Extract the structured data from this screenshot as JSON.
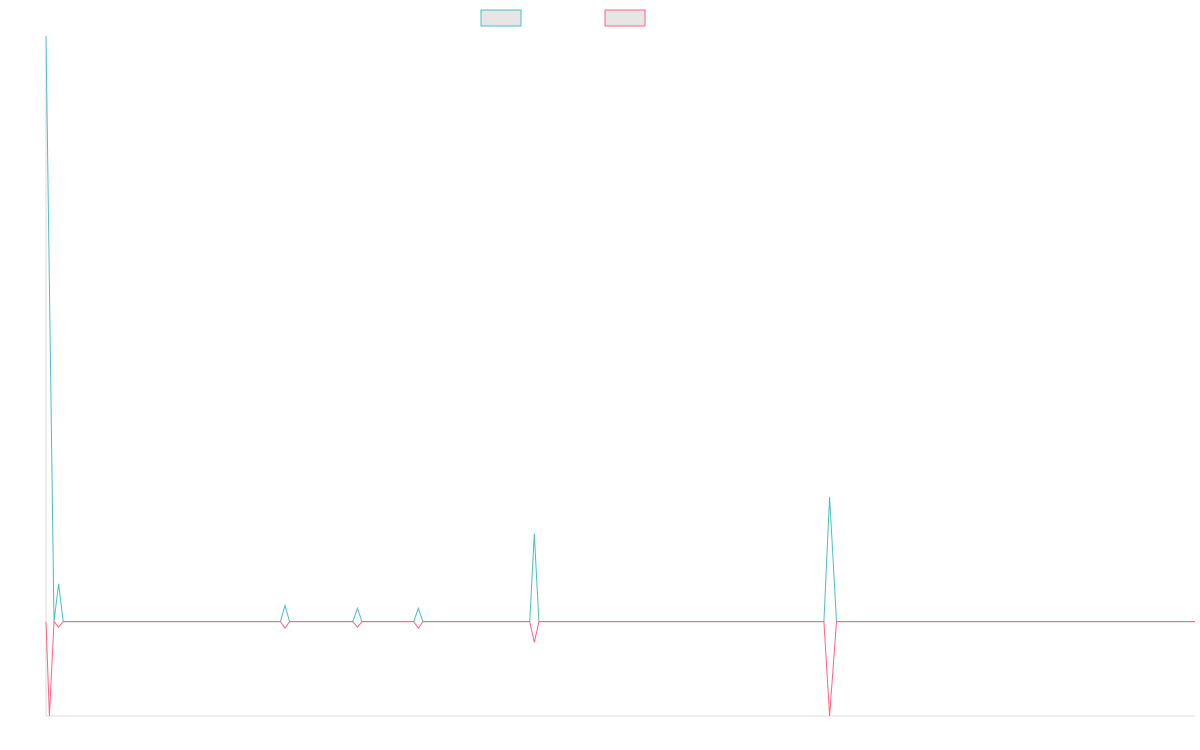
{
  "chart_data": {
    "type": "line",
    "title": "",
    "xlabel": "",
    "ylabel": "",
    "legend": {
      "position": "top-center",
      "entries": [
        {
          "color": "#4bc0c0",
          "fill": "#e6e6e6"
        },
        {
          "color": "#ff6384",
          "fill": "#e6e6e6"
        }
      ]
    },
    "grid": false,
    "xlim": [
      0,
      1000
    ],
    "ylim": [
      -100,
      620
    ],
    "series": [
      {
        "color": "#4bc0c0",
        "points": [
          [
            0,
            620
          ],
          [
            7,
            0
          ],
          [
            11,
            40
          ],
          [
            15,
            0
          ],
          [
            170,
            0
          ],
          [
            174,
            0
          ],
          [
            178,
            0
          ],
          [
            204,
            0
          ],
          [
            208,
            17
          ],
          [
            212,
            0
          ],
          [
            267,
            0
          ],
          [
            271,
            14
          ],
          [
            275,
            0
          ],
          [
            320,
            0
          ],
          [
            324,
            14
          ],
          [
            328,
            0
          ],
          [
            357,
            0
          ],
          [
            361,
            0
          ],
          [
            365,
            0
          ],
          [
            421,
            0
          ],
          [
            425,
            93
          ],
          [
            429,
            0
          ],
          [
            453,
            0
          ],
          [
            456,
            0
          ],
          [
            459,
            0
          ],
          [
            677,
            0
          ],
          [
            682,
            132
          ],
          [
            688,
            0
          ],
          [
            1000,
            0
          ]
        ]
      },
      {
        "color": "#ff6384",
        "points": [
          [
            0,
            0
          ],
          [
            3,
            -100
          ],
          [
            7,
            0
          ],
          [
            11,
            -6
          ],
          [
            15,
            0
          ],
          [
            170,
            0
          ],
          [
            174,
            0
          ],
          [
            178,
            0
          ],
          [
            204,
            0
          ],
          [
            208,
            -7
          ],
          [
            212,
            0
          ],
          [
            267,
            0
          ],
          [
            271,
            -6
          ],
          [
            275,
            0
          ],
          [
            288,
            0
          ],
          [
            290,
            0
          ],
          [
            292,
            0
          ],
          [
            320,
            0
          ],
          [
            324,
            -7
          ],
          [
            328,
            0
          ],
          [
            357,
            0
          ],
          [
            361,
            0
          ],
          [
            365,
            0
          ],
          [
            421,
            0
          ],
          [
            425,
            -22
          ],
          [
            429,
            0
          ],
          [
            453,
            0
          ],
          [
            456,
            0
          ],
          [
            459,
            0
          ],
          [
            677,
            0
          ],
          [
            682,
            -100
          ],
          [
            688,
            0
          ],
          [
            1000,
            0
          ]
        ]
      }
    ]
  }
}
